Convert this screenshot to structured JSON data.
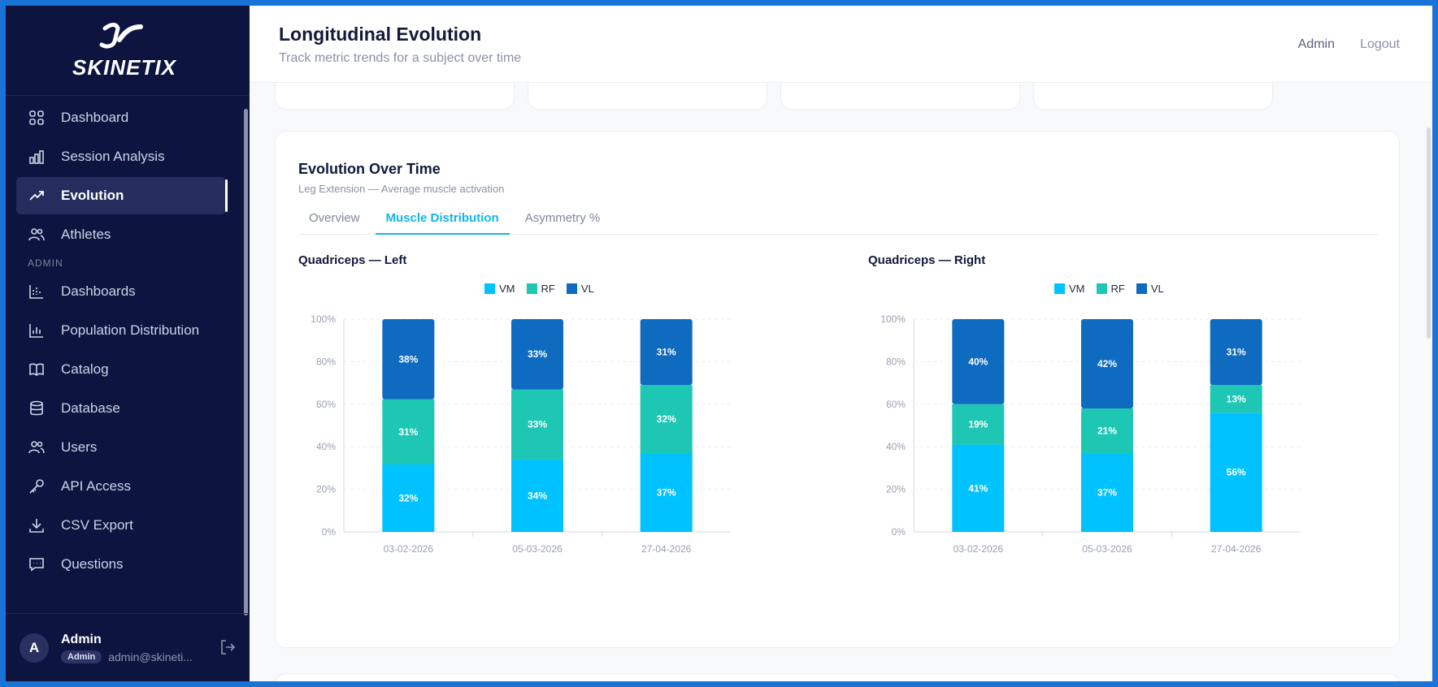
{
  "brand": {
    "name": "SKINETIX"
  },
  "sidebar": {
    "items": [
      {
        "label": "Dashboard",
        "icon": "grid-icon",
        "active": false
      },
      {
        "label": "Session Analysis",
        "icon": "bar-chart-icon",
        "active": false
      },
      {
        "label": "Evolution",
        "icon": "trend-up-icon",
        "active": true
      },
      {
        "label": "Athletes",
        "icon": "users-icon",
        "active": false
      }
    ],
    "admin_section": "ADMIN",
    "admin_items": [
      {
        "label": "Dashboards",
        "icon": "dashboard-chart-icon"
      },
      {
        "label": "Population Distribution",
        "icon": "histogram-icon"
      },
      {
        "label": "Catalog",
        "icon": "book-icon"
      },
      {
        "label": "Database",
        "icon": "database-icon"
      },
      {
        "label": "Users",
        "icon": "users-icon"
      },
      {
        "label": "API Access",
        "icon": "key-icon"
      },
      {
        "label": "CSV Export",
        "icon": "download-icon"
      },
      {
        "label": "Questions",
        "icon": "chat-icon"
      }
    ],
    "user": {
      "initial": "A",
      "name": "Admin",
      "role": "Admin",
      "email": "admin@skineti..."
    }
  },
  "header": {
    "title": "Longitudinal Evolution",
    "subtitle": "Track metric trends for a subject over time",
    "admin_link": "Admin",
    "logout_link": "Logout"
  },
  "panel": {
    "title": "Evolution Over Time",
    "subtitle": "Leg Extension — Average muscle activation",
    "tabs": [
      {
        "label": "Overview",
        "active": false
      },
      {
        "label": "Muscle Distribution",
        "active": true
      },
      {
        "label": "Asymmetry %",
        "active": false
      }
    ]
  },
  "colors": {
    "VM": "#00c2ff",
    "RF": "#1ec6b4",
    "VL": "#0e6bbf",
    "accent": "#12b5e8",
    "sidebar": "#0d1440"
  },
  "chart_data": [
    {
      "type": "bar",
      "stacked": true,
      "title": "Quadriceps — Left",
      "categories": [
        "03-02-2026",
        "05-03-2026",
        "27-04-2026"
      ],
      "series": [
        {
          "name": "VM",
          "values": [
            32,
            34,
            37
          ]
        },
        {
          "name": "RF",
          "values": [
            31,
            33,
            32
          ]
        },
        {
          "name": "VL",
          "values": [
            38,
            33,
            31
          ]
        }
      ],
      "ylim": [
        0,
        100
      ],
      "yticks": [
        "0%",
        "20%",
        "40%",
        "60%",
        "80%",
        "100%"
      ],
      "legend": "top-center",
      "grid": true
    },
    {
      "type": "bar",
      "stacked": true,
      "title": "Quadriceps — Right",
      "categories": [
        "03-02-2026",
        "05-03-2026",
        "27-04-2026"
      ],
      "series": [
        {
          "name": "VM",
          "values": [
            41,
            37,
            56
          ]
        },
        {
          "name": "RF",
          "values": [
            19,
            21,
            13
          ]
        },
        {
          "name": "VL",
          "values": [
            40,
            42,
            31
          ]
        }
      ],
      "ylim": [
        0,
        100
      ],
      "yticks": [
        "0%",
        "20%",
        "40%",
        "60%",
        "80%",
        "100%"
      ],
      "legend": "top-center",
      "grid": true
    }
  ]
}
